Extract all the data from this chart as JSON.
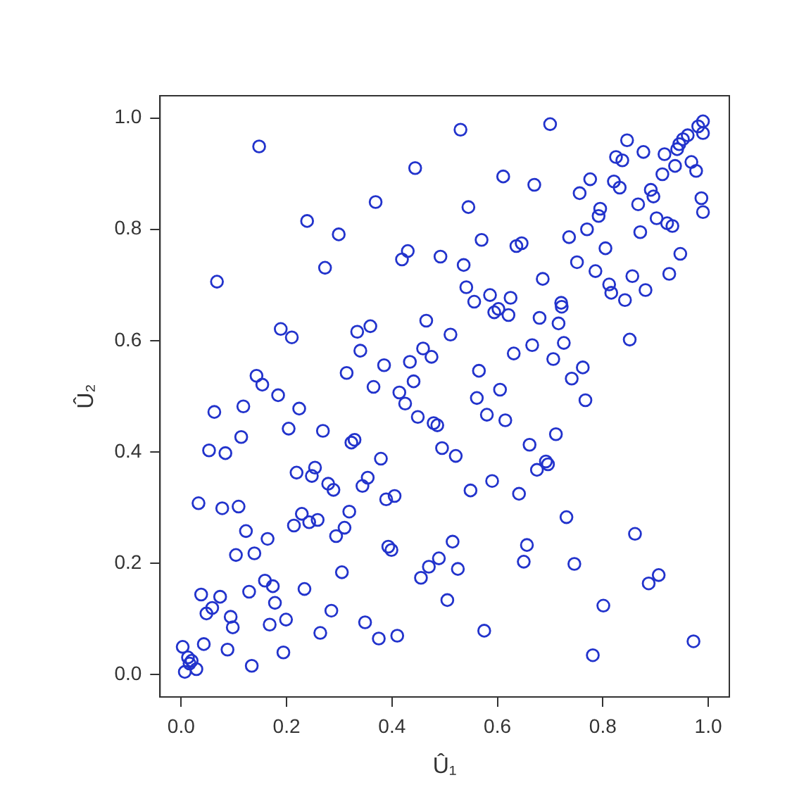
{
  "chart_data": {
    "type": "scatter",
    "xlabel": "Û₁",
    "ylabel": "Û₂",
    "marker": "circle",
    "grid": false,
    "legend": false,
    "xlim": [
      -0.04,
      1.04
    ],
    "ylim": [
      -0.04,
      1.04
    ],
    "xticks": [
      {
        "value": 0,
        "label": "0.0"
      },
      0.2,
      0.4,
      0.6,
      0.8,
      {
        "value": 1,
        "label": "1.0"
      }
    ],
    "yticks": [
      {
        "value": 0,
        "label": "0.0"
      },
      0.2,
      0.4,
      0.6,
      0.8,
      {
        "value": 1,
        "label": "1.0"
      }
    ],
    "series": [
      {
        "color": "#2233cc",
        "x": [
          0.148,
          0.444,
          0.369,
          0.239,
          0.299,
          0.43,
          0.419,
          0.492,
          0.273,
          0.068,
          0.53,
          0.7,
          0.99,
          0.981,
          0.99,
          0.846,
          0.961,
          0.952,
          0.945,
          0.941,
          0.877,
          0.917,
          0.825,
          0.837,
          0.968,
          0.937,
          0.977,
          0.913,
          0.611,
          0.67,
          0.821,
          0.832,
          0.776,
          0.756,
          0.891,
          0.896,
          0.987,
          0.99,
          0.545,
          0.867,
          0.795,
          0.792,
          0.902,
          0.922,
          0.932,
          0.57,
          0.636,
          0.646,
          0.736,
          0.77,
          0.871,
          0.805,
          0.947,
          0.536,
          0.751,
          0.786,
          0.926,
          0.686,
          0.856,
          0.541,
          0.812,
          0.816,
          0.881,
          0.586,
          0.625,
          0.556,
          0.842,
          0.721,
          0.189,
          0.21,
          0.334,
          0.359,
          0.465,
          0.34,
          0.459,
          0.475,
          0.434,
          0.385,
          0.314,
          0.143,
          0.154,
          0.441,
          0.365,
          0.414,
          0.425,
          0.184,
          0.118,
          0.224,
          0.063,
          0.449,
          0.479,
          0.486,
          0.204,
          0.269,
          0.114,
          0.329,
          0.323,
          0.053,
          0.084,
          0.495,
          0.379,
          0.219,
          0.254,
          0.248,
          0.354,
          0.344,
          0.279,
          0.289,
          0.405,
          0.594,
          0.602,
          0.621,
          0.722,
          0.68,
          0.716,
          0.511,
          0.666,
          0.726,
          0.851,
          0.631,
          0.706,
          0.762,
          0.741,
          0.565,
          0.605,
          0.561,
          0.767,
          0.58,
          0.615,
          0.711,
          0.661,
          0.521,
          0.692,
          0.696,
          0.675,
          0.59,
          0.549,
          0.641,
          0.389,
          0.033,
          0.078,
          0.109,
          0.229,
          0.214,
          0.243,
          0.259,
          0.319,
          0.31,
          0.294,
          0.123,
          0.164,
          0.104,
          0.139,
          0.393,
          0.399,
          0.305,
          0.455,
          0.47,
          0.489,
          0.159,
          0.174,
          0.038,
          0.074,
          0.129,
          0.234,
          0.059,
          0.048,
          0.178,
          0.094,
          0.098,
          0.199,
          0.168,
          0.285,
          0.349,
          0.264,
          0.375,
          0.41,
          0.003,
          0.043,
          0.088,
          0.194,
          0.013,
          0.02,
          0.016,
          0.029,
          0.007,
          0.134,
          0.731,
          0.861,
          0.515,
          0.525,
          0.656,
          0.65,
          0.746,
          0.906,
          0.887,
          0.505,
          0.801,
          0.575,
          0.972,
          0.781
        ],
        "values": [
          0.949,
          0.91,
          0.849,
          0.815,
          0.791,
          0.761,
          0.746,
          0.751,
          0.731,
          0.706,
          0.979,
          0.989,
          0.994,
          0.985,
          0.973,
          0.96,
          0.969,
          0.962,
          0.953,
          0.944,
          0.939,
          0.935,
          0.93,
          0.924,
          0.921,
          0.914,
          0.905,
          0.899,
          0.895,
          0.88,
          0.886,
          0.875,
          0.89,
          0.865,
          0.871,
          0.859,
          0.856,
          0.831,
          0.84,
          0.845,
          0.837,
          0.824,
          0.82,
          0.811,
          0.806,
          0.781,
          0.77,
          0.775,
          0.786,
          0.8,
          0.795,
          0.766,
          0.756,
          0.736,
          0.741,
          0.725,
          0.72,
          0.711,
          0.716,
          0.696,
          0.701,
          0.686,
          0.691,
          0.682,
          0.677,
          0.67,
          0.673,
          0.668,
          0.621,
          0.606,
          0.616,
          0.626,
          0.636,
          0.582,
          0.586,
          0.571,
          0.562,
          0.556,
          0.542,
          0.537,
          0.521,
          0.527,
          0.517,
          0.507,
          0.487,
          0.502,
          0.482,
          0.478,
          0.472,
          0.463,
          0.452,
          0.448,
          0.442,
          0.438,
          0.427,
          0.422,
          0.417,
          0.403,
          0.398,
          0.407,
          0.388,
          0.363,
          0.372,
          0.357,
          0.354,
          0.339,
          0.343,
          0.332,
          0.321,
          0.651,
          0.657,
          0.646,
          0.661,
          0.641,
          0.631,
          0.611,
          0.592,
          0.596,
          0.602,
          0.577,
          0.567,
          0.552,
          0.532,
          0.546,
          0.512,
          0.497,
          0.493,
          0.467,
          0.457,
          0.432,
          0.413,
          0.393,
          0.383,
          0.378,
          0.368,
          0.348,
          0.331,
          0.325,
          0.315,
          0.308,
          0.299,
          0.302,
          0.289,
          0.268,
          0.274,
          0.278,
          0.293,
          0.264,
          0.249,
          0.258,
          0.244,
          0.215,
          0.218,
          0.23,
          0.224,
          0.184,
          0.174,
          0.194,
          0.209,
          0.169,
          0.159,
          0.144,
          0.14,
          0.149,
          0.154,
          0.12,
          0.11,
          0.129,
          0.104,
          0.085,
          0.099,
          0.09,
          0.115,
          0.094,
          0.075,
          0.065,
          0.07,
          0.05,
          0.055,
          0.045,
          0.04,
          0.031,
          0.025,
          0.02,
          0.01,
          0.005,
          0.016,
          0.283,
          0.253,
          0.239,
          0.19,
          0.233,
          0.203,
          0.199,
          0.179,
          0.164,
          0.134,
          0.124,
          0.079,
          0.06,
          0.035
        ]
      }
    ]
  }
}
